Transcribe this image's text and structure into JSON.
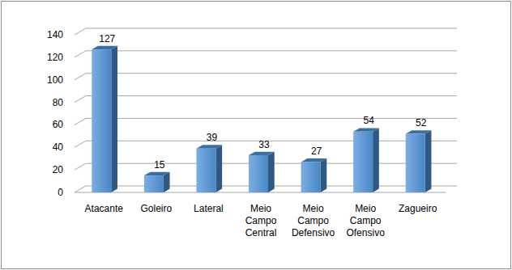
{
  "chart_data": {
    "type": "bar",
    "categories": [
      "Atacante",
      "Goleiro",
      "Lateral",
      "Meio Campo Central",
      "Meio Campo Defensivo",
      "Meio Campo Ofensivo",
      "Zagueiro"
    ],
    "values": [
      127,
      15,
      39,
      33,
      27,
      54,
      52
    ],
    "color": "#4f93d8",
    "ylim": [
      0,
      140
    ],
    "yticks": [
      0,
      20,
      40,
      60,
      80,
      100,
      120,
      140
    ],
    "grid": true,
    "data_labels": true
  }
}
